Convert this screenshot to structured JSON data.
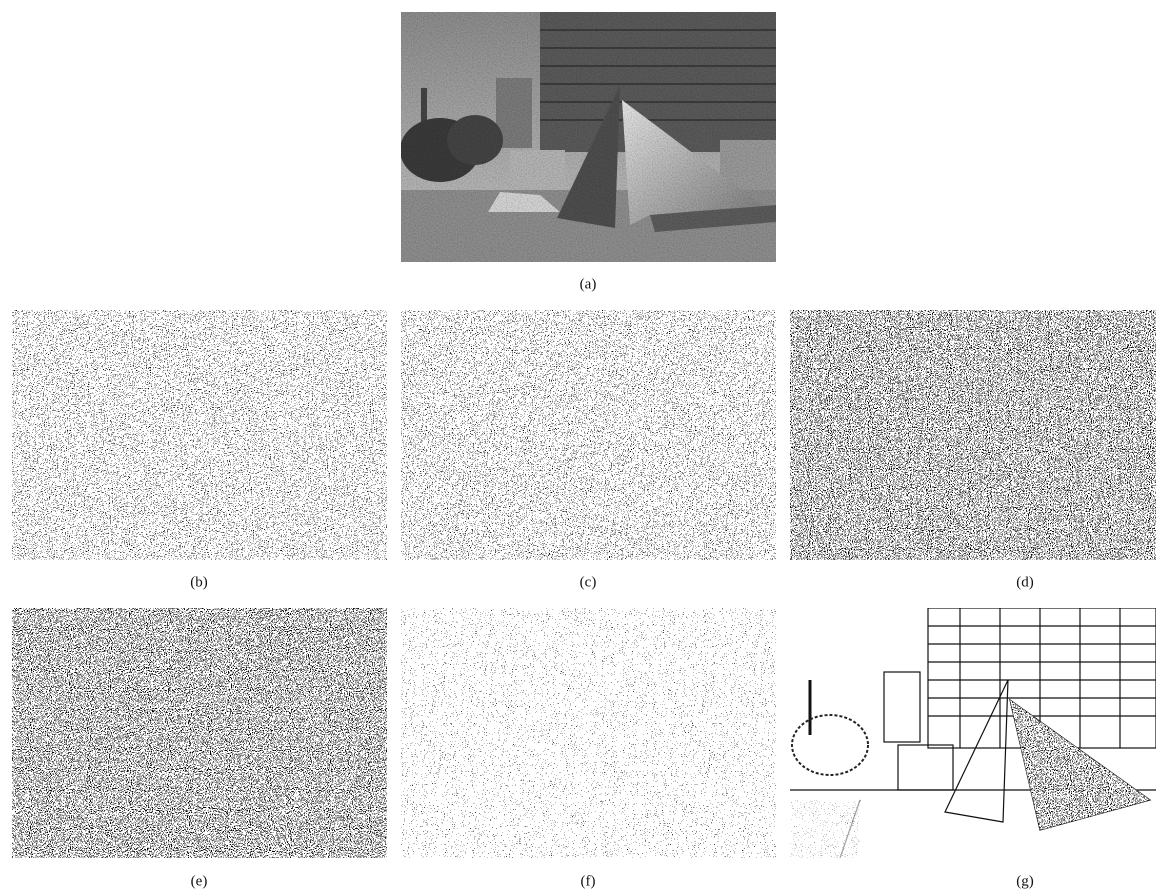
{
  "panels": [
    {
      "label": "(a)"
    },
    {
      "label": "(b)"
    },
    {
      "label": "(c)"
    },
    {
      "label": "(d)"
    },
    {
      "label": "(e)"
    },
    {
      "label": "(f)"
    },
    {
      "label": "(g)"
    }
  ]
}
